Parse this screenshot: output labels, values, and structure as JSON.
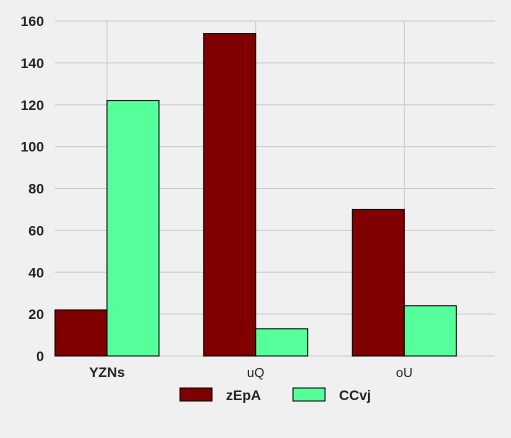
{
  "chart_data": {
    "type": "bar",
    "categories": [
      "YZNs",
      "uQ",
      "oU"
    ],
    "series": [
      {
        "name": "zEpA",
        "values": [
          22,
          154,
          70
        ],
        "color": "#800000"
      },
      {
        "name": "CCvj",
        "values": [
          122,
          13,
          24
        ],
        "color": "#55ff99"
      }
    ],
    "title": "",
    "xlabel": "",
    "ylabel": "",
    "ylim": [
      0,
      160
    ],
    "yticks": [
      0,
      20,
      40,
      60,
      80,
      100,
      120,
      140,
      160
    ],
    "grid": true,
    "legend_position": "bottom-center",
    "background_color": "#f0f0f0",
    "grid_color": "#cbcbcb"
  }
}
